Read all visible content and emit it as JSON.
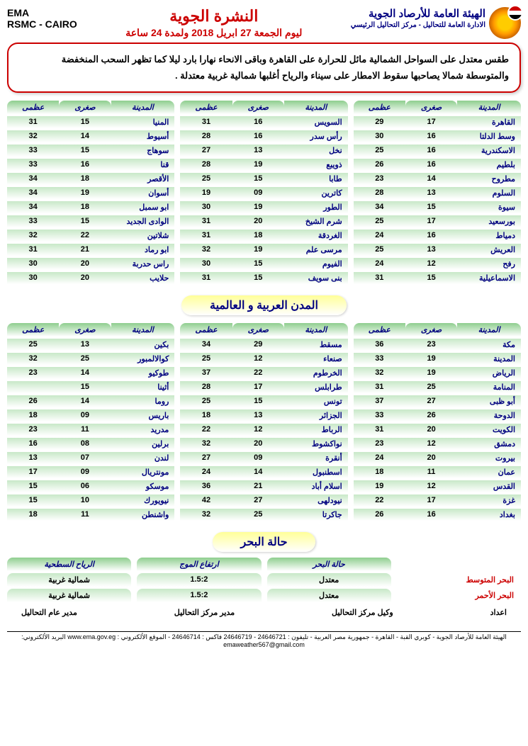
{
  "header": {
    "ema": "EMA",
    "rsmc": "RSMC - CAIRO",
    "title1": "النشرة الجوية",
    "title2": "ليوم الجمعة 27 ابريل 2018 ولمدة 24 ساعة",
    "org": "الهيئة العامة للأرصاد الجوية",
    "dept": "الادارة العامة للتحاليل - مركز التحاليل الرئيسي"
  },
  "forecast": "طقس معتدل على السواحل الشمالية مائل للحرارة على القاهرة وباقى الانحاء نهارا بارد ليلا كما تظهر السحب المنخفضة والمتوسطة شمالا يصاحبها سقوط الامطار على سيناء والرياح أغلبها شمالية غربية معتدلة .",
  "th": {
    "city": "المدينة",
    "min": "صغرى",
    "max": "عظمى"
  },
  "egypt1": [
    {
      "c": "القاهرة",
      "n": "17",
      "x": "29"
    },
    {
      "c": "وسط الدلتا",
      "n": "16",
      "x": "30"
    },
    {
      "c": "الاسكندرية",
      "n": "16",
      "x": "25"
    },
    {
      "c": "بلطيم",
      "n": "16",
      "x": "26"
    },
    {
      "c": "مطروح",
      "n": "14",
      "x": "23"
    },
    {
      "c": "السلوم",
      "n": "13",
      "x": "28"
    },
    {
      "c": "سيوة",
      "n": "15",
      "x": "34"
    },
    {
      "c": "بورسعيد",
      "n": "17",
      "x": "25"
    },
    {
      "c": "دمياط",
      "n": "16",
      "x": "24"
    },
    {
      "c": "العريش",
      "n": "13",
      "x": "25"
    },
    {
      "c": "رفح",
      "n": "12",
      "x": "24"
    },
    {
      "c": "الاسماعيلية",
      "n": "15",
      "x": "31"
    }
  ],
  "egypt2": [
    {
      "c": "السويس",
      "n": "16",
      "x": "31"
    },
    {
      "c": "رأس سدر",
      "n": "16",
      "x": "28"
    },
    {
      "c": "نخل",
      "n": "13",
      "x": "27"
    },
    {
      "c": "ذويبع",
      "n": "19",
      "x": "28"
    },
    {
      "c": "طابا",
      "n": "15",
      "x": "25"
    },
    {
      "c": "كاترين",
      "n": "09",
      "x": "19"
    },
    {
      "c": "الطور",
      "n": "19",
      "x": "30"
    },
    {
      "c": "شرم الشيخ",
      "n": "20",
      "x": "31"
    },
    {
      "c": "الغردقة",
      "n": "18",
      "x": "31"
    },
    {
      "c": "مرسى علم",
      "n": "19",
      "x": "32"
    },
    {
      "c": "الفيوم",
      "n": "15",
      "x": "30"
    },
    {
      "c": "بنى سويف",
      "n": "15",
      "x": "31"
    }
  ],
  "egypt3": [
    {
      "c": "المنيا",
      "n": "15",
      "x": "31"
    },
    {
      "c": "أسيوط",
      "n": "14",
      "x": "32"
    },
    {
      "c": "سوهاج",
      "n": "15",
      "x": "33"
    },
    {
      "c": "قنا",
      "n": "16",
      "x": "33"
    },
    {
      "c": "الأقصر",
      "n": "18",
      "x": "34"
    },
    {
      "c": "أسوان",
      "n": "19",
      "x": "34"
    },
    {
      "c": "ابو سمبل",
      "n": "18",
      "x": "34"
    },
    {
      "c": "الوادى الجديد",
      "n": "15",
      "x": "33"
    },
    {
      "c": "شلاتين",
      "n": "22",
      "x": "32"
    },
    {
      "c": "ابو رماد",
      "n": "21",
      "x": "31"
    },
    {
      "c": "راس حدربة",
      "n": "20",
      "x": "30"
    },
    {
      "c": "حلايب",
      "n": "20",
      "x": "30"
    }
  ],
  "section_world": "المدن العربية و العالمية",
  "world1": [
    {
      "c": "مكة",
      "n": "23",
      "x": "36"
    },
    {
      "c": "المدينة",
      "n": "19",
      "x": "33"
    },
    {
      "c": "الرياض",
      "n": "19",
      "x": "32"
    },
    {
      "c": "المنامة",
      "n": "25",
      "x": "31"
    },
    {
      "c": "أبو ظبى",
      "n": "27",
      "x": "37"
    },
    {
      "c": "الدوحة",
      "n": "26",
      "x": "33"
    },
    {
      "c": "الكويت",
      "n": "20",
      "x": "31"
    },
    {
      "c": "دمشق",
      "n": "12",
      "x": "23"
    },
    {
      "c": "بيروت",
      "n": "20",
      "x": "24"
    },
    {
      "c": "عمان",
      "n": "11",
      "x": "18"
    },
    {
      "c": "القدس",
      "n": "12",
      "x": "19"
    },
    {
      "c": "غزة",
      "n": "17",
      "x": "22"
    },
    {
      "c": "بغداد",
      "n": "16",
      "x": "26"
    }
  ],
  "world2": [
    {
      "c": "مسقط",
      "n": "29",
      "x": "34"
    },
    {
      "c": "صنعاء",
      "n": "12",
      "x": "25"
    },
    {
      "c": "الخرطوم",
      "n": "22",
      "x": "37"
    },
    {
      "c": "طرابلس",
      "n": "17",
      "x": "28"
    },
    {
      "c": "تونس",
      "n": "15",
      "x": "25"
    },
    {
      "c": "الجزائر",
      "n": "13",
      "x": "18"
    },
    {
      "c": "الرباط",
      "n": "12",
      "x": "22"
    },
    {
      "c": "نواكشوط",
      "n": "20",
      "x": "32"
    },
    {
      "c": "أنقرة",
      "n": "09",
      "x": "27"
    },
    {
      "c": "اسطنبول",
      "n": "14",
      "x": "24"
    },
    {
      "c": "اسلام أباد",
      "n": "21",
      "x": "36"
    },
    {
      "c": "نيودلهى",
      "n": "27",
      "x": "42"
    },
    {
      "c": "جاكرتا",
      "n": "25",
      "x": "32"
    }
  ],
  "world3": [
    {
      "c": "بكين",
      "n": "13",
      "x": "25"
    },
    {
      "c": "كوالالمبور",
      "n": "25",
      "x": "32"
    },
    {
      "c": "طوكيو",
      "n": "14",
      "x": "23"
    },
    {
      "c": "أثينا",
      "n": "15",
      "x": ""
    },
    {
      "c": "روما",
      "n": "14",
      "x": "26"
    },
    {
      "c": "باريس",
      "n": "09",
      "x": "18"
    },
    {
      "c": "مدريد",
      "n": "11",
      "x": "23"
    },
    {
      "c": "برلين",
      "n": "08",
      "x": "16"
    },
    {
      "c": "لندن",
      "n": "07",
      "x": "13"
    },
    {
      "c": "مونتريال",
      "n": "09",
      "x": "17"
    },
    {
      "c": "موسكو",
      "n": "06",
      "x": "15"
    },
    {
      "c": "نيويورك",
      "n": "10",
      "x": "15"
    },
    {
      "c": "واشنطن",
      "n": "11",
      "x": "18"
    }
  ],
  "sea_section": "حالة البحر",
  "sea_hdr": {
    "state": "حالة البحر",
    "wave": "ارتفاع الموج",
    "wind": "الرياح السطحية"
  },
  "sea": [
    {
      "label": "البحر المتوسط",
      "state": "معتدل",
      "wave": "1.5:2",
      "wind": "شمالية غربية"
    },
    {
      "label": "البحر الأحمر",
      "state": "معتدل",
      "wave": "1.5:2",
      "wind": "شمالية غربية"
    }
  ],
  "sig": {
    "s1": "اعداد",
    "s2": "وكيل مركز التحاليل",
    "s3": "مدير مركز التحاليل",
    "s4": "مدير عام التحاليل"
  },
  "footer": "الهيئة العامة للأرصاد الجوية - كوبري القبة - القاهرة - جمهورية مصر العربية - تليفون : 24646721 - 24646719 فاكس : 24646714 - الموقع الألكتروني : www.ema.gov.eg البريد الألكتروني: emaweather567@gmail.com"
}
